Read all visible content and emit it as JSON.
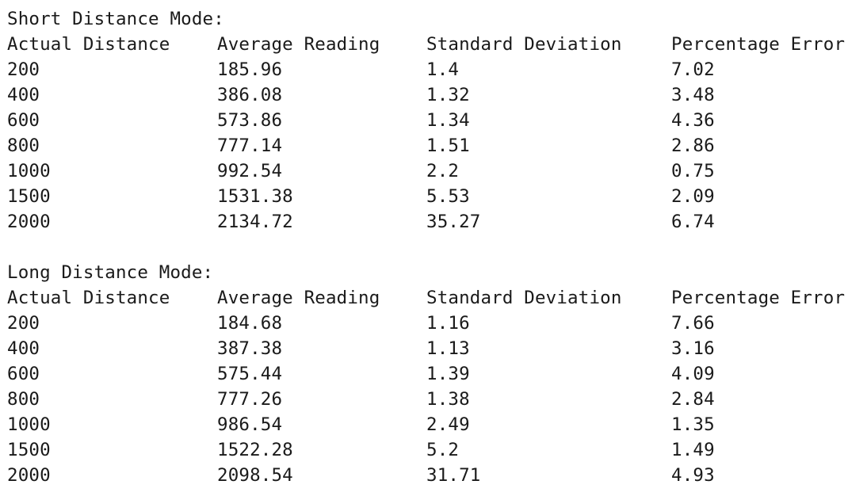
{
  "sections": [
    {
      "title": "Short Distance Mode:",
      "headers": [
        "Actual Distance",
        "Average Reading",
        "Standard Deviation",
        "Percentage Error"
      ],
      "rows": [
        [
          "200",
          "185.96",
          "1.4",
          "7.02"
        ],
        [
          "400",
          "386.08",
          "1.32",
          "3.48"
        ],
        [
          "600",
          "573.86",
          "1.34",
          "4.36"
        ],
        [
          "800",
          "777.14",
          "1.51",
          "2.86"
        ],
        [
          "1000",
          "992.54",
          "2.2",
          "0.75"
        ],
        [
          "1500",
          "1531.38",
          "5.53",
          "2.09"
        ],
        [
          "2000",
          "2134.72",
          "35.27",
          "6.74"
        ]
      ]
    },
    {
      "title": "Long Distance Mode:",
      "headers": [
        "Actual Distance",
        "Average Reading",
        "Standard Deviation",
        "Percentage Error"
      ],
      "rows": [
        [
          "200",
          "184.68",
          "1.16",
          "7.66"
        ],
        [
          "400",
          "387.38",
          "1.13",
          "3.16"
        ],
        [
          "600",
          "575.44",
          "1.39",
          "4.09"
        ],
        [
          "800",
          "777.26",
          "1.38",
          "2.84"
        ],
        [
          "1000",
          "986.54",
          "2.49",
          "1.35"
        ],
        [
          "1500",
          "1522.28",
          "5.2",
          "1.49"
        ],
        [
          "2000",
          "2098.54",
          "31.71",
          "4.93"
        ]
      ]
    }
  ]
}
